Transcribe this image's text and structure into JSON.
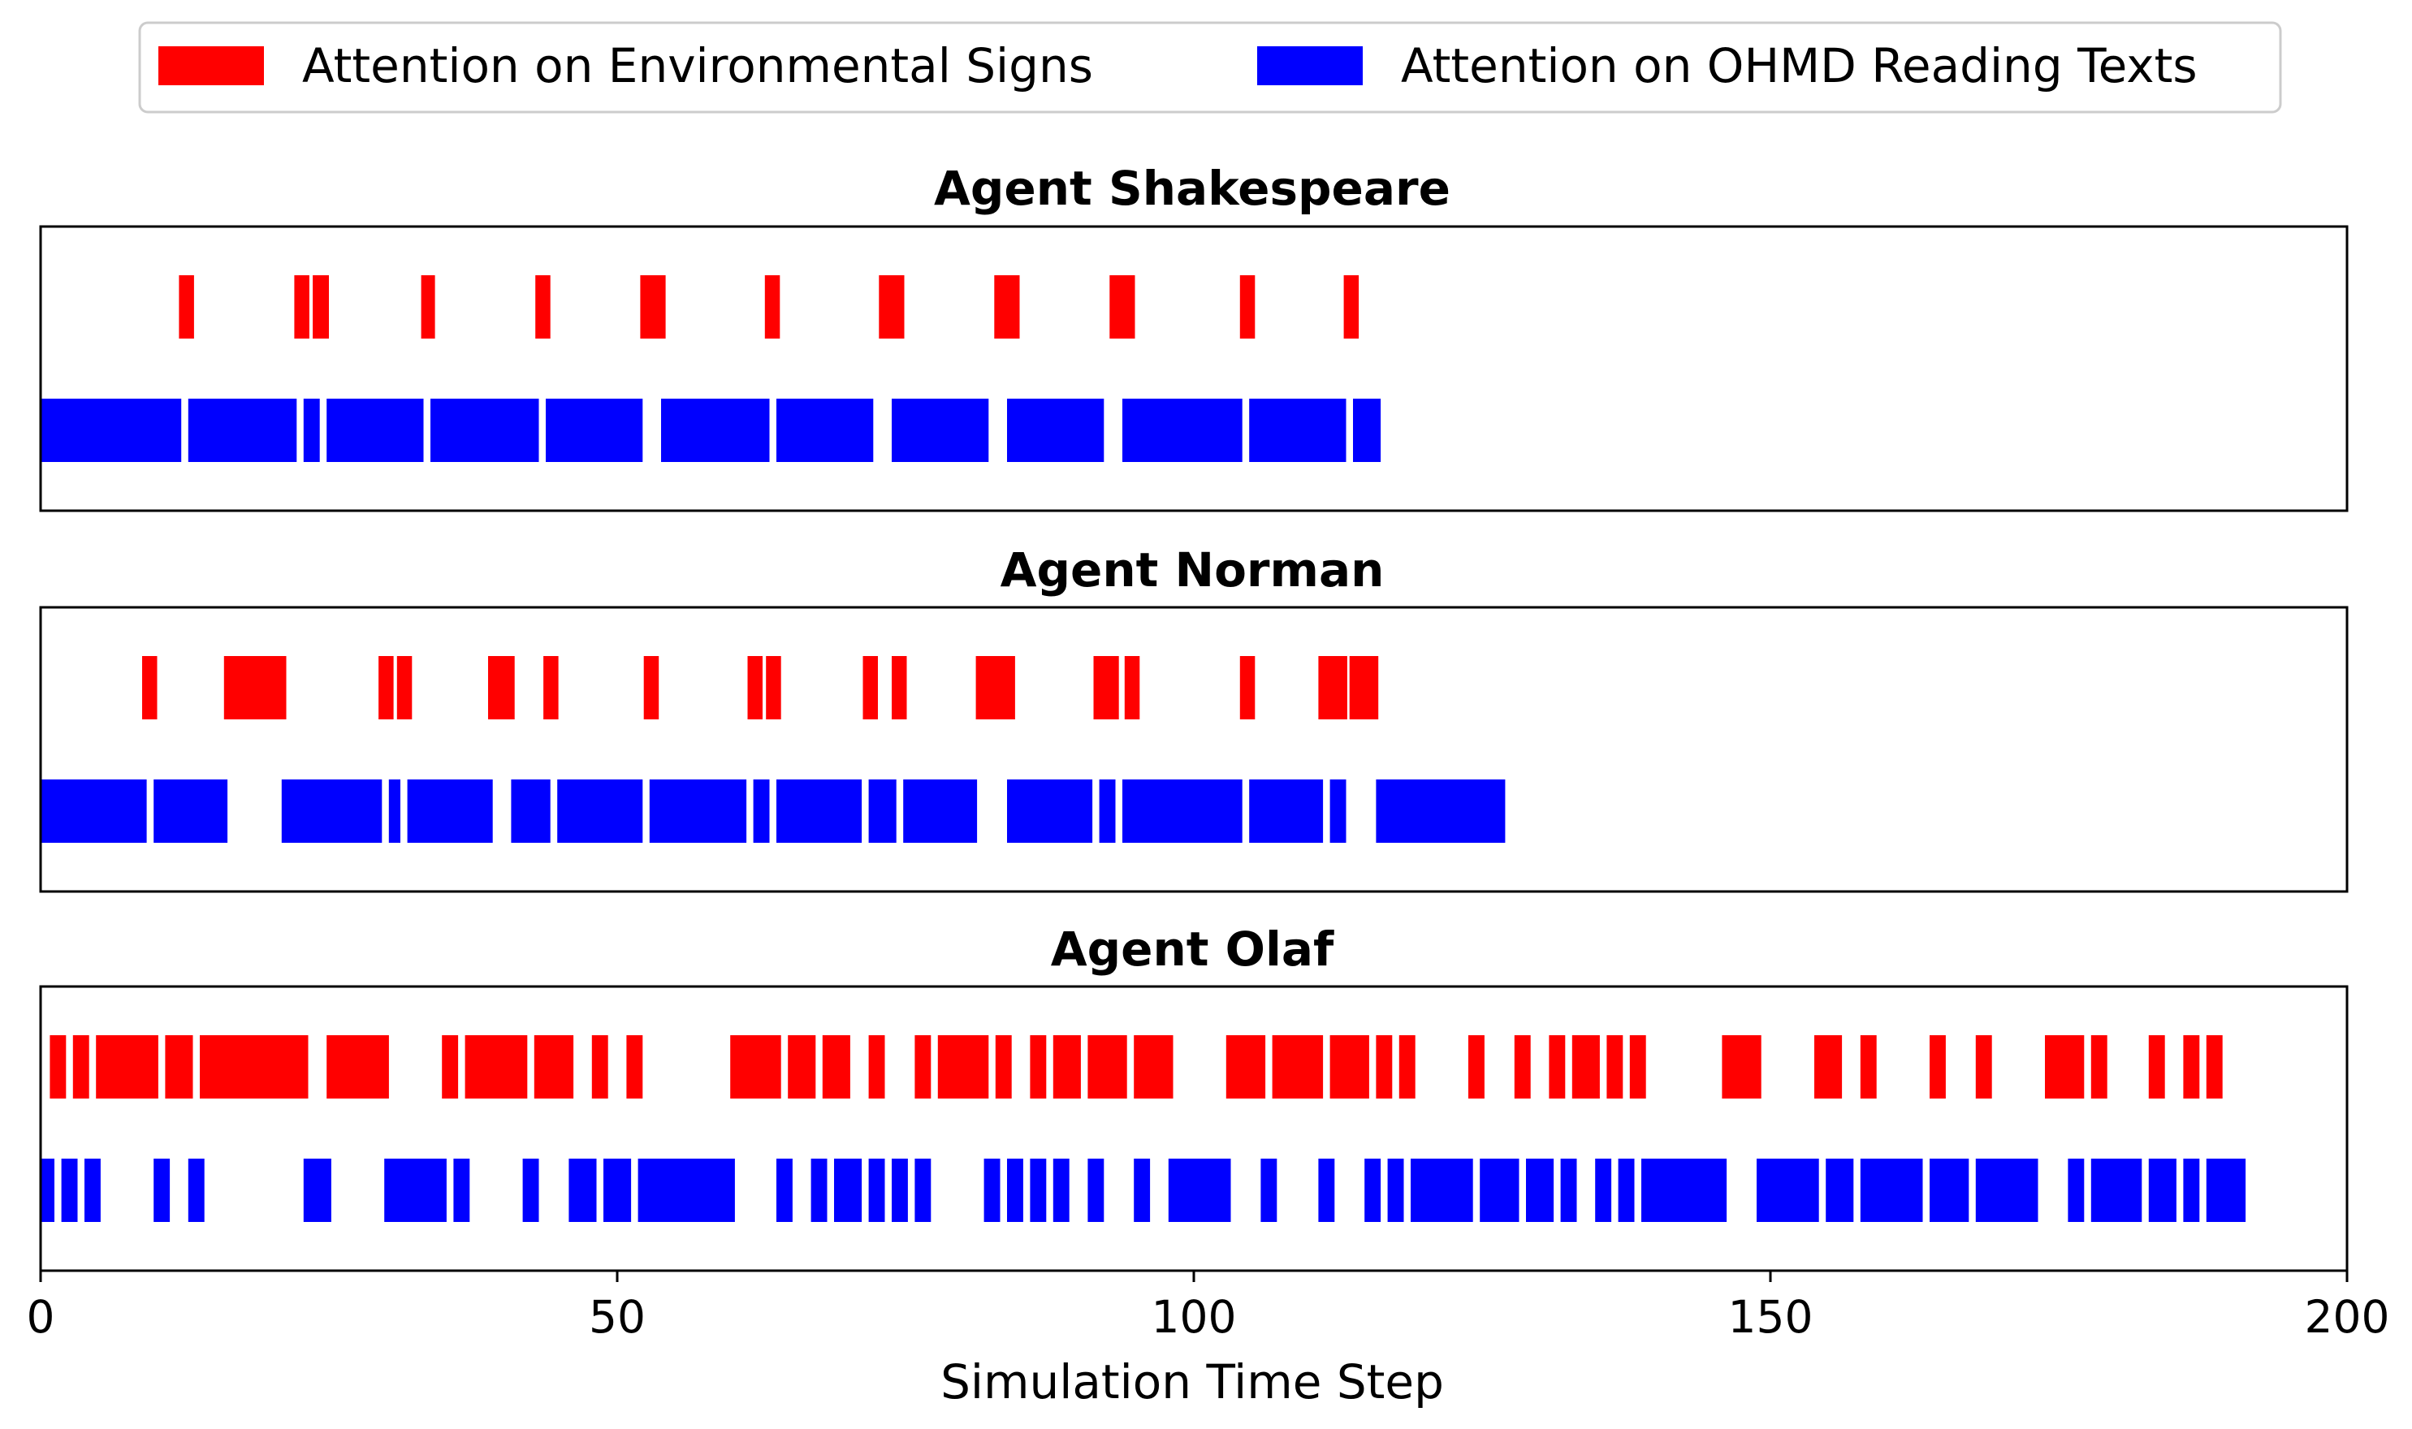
{
  "chart_data": {
    "type": "broken_barh",
    "xlabel": "Simulation Time Step",
    "xlim": [
      0,
      200
    ],
    "xticks": [
      0,
      50,
      100,
      150,
      200
    ],
    "xtick_labels": [
      "0",
      "50",
      "100",
      "150",
      "200"
    ],
    "grid": false,
    "legend_position": "top-center",
    "legend": [
      {
        "label": "Attention on Environmental Signs",
        "color": "#ff0000"
      },
      {
        "label": "Attention on OHMD Reading Texts",
        "color": "#0000ff"
      }
    ],
    "panels": [
      {
        "title": "Agent Shakespeare",
        "series": [
          {
            "color": "#ff0000",
            "segments": [
              [
                12,
                13.3
              ],
              [
                22,
                23.3
              ],
              [
                23.6,
                25
              ],
              [
                33,
                34.2
              ],
              [
                42.9,
                44.2
              ],
              [
                52,
                54.2
              ],
              [
                62.8,
                64.1
              ],
              [
                72.7,
                74.9
              ],
              [
                82.7,
                84.9
              ],
              [
                92.7,
                94.9
              ],
              [
                104,
                105.3
              ],
              [
                113,
                114.3
              ]
            ]
          },
          {
            "color": "#0000ff",
            "segments": [
              [
                0,
                12.2
              ],
              [
                12.8,
                22.2
              ],
              [
                22.8,
                24.2
              ],
              [
                24.8,
                33.2
              ],
              [
                33.8,
                43.2
              ],
              [
                43.8,
                52.2
              ],
              [
                53.8,
                63.2
              ],
              [
                63.8,
                72.2
              ],
              [
                73.8,
                82.2
              ],
              [
                83.8,
                92.2
              ],
              [
                93.8,
                104.2
              ],
              [
                104.8,
                113.2
              ],
              [
                113.8,
                116.2
              ]
            ]
          }
        ]
      },
      {
        "title": "Agent Norman",
        "series": [
          {
            "color": "#ff0000",
            "segments": [
              [
                8.8,
                10.1
              ],
              [
                15.9,
                21.3
              ],
              [
                29.3,
                30.6
              ],
              [
                30.9,
                32.2
              ],
              [
                38.8,
                41.1
              ],
              [
                43.6,
                44.9
              ],
              [
                52.3,
                53.6
              ],
              [
                61.3,
                62.6
              ],
              [
                62.9,
                64.2
              ],
              [
                71.3,
                72.6
              ],
              [
                73.8,
                75.1
              ],
              [
                81.1,
                84.5
              ],
              [
                91.3,
                93.5
              ],
              [
                94,
                95.3
              ],
              [
                104,
                105.3
              ],
              [
                110.8,
                113.3
              ],
              [
                113.5,
                116
              ]
            ]
          },
          {
            "color": "#0000ff",
            "segments": [
              [
                0,
                9.2
              ],
              [
                9.8,
                16.2
              ],
              [
                20.9,
                29.6
              ],
              [
                30.2,
                31.2
              ],
              [
                31.8,
                39.2
              ],
              [
                40.8,
                44.2
              ],
              [
                44.8,
                52.2
              ],
              [
                52.8,
                61.2
              ],
              [
                61.8,
                63.2
              ],
              [
                63.8,
                71.2
              ],
              [
                71.8,
                74.2
              ],
              [
                74.8,
                81.2
              ],
              [
                83.8,
                91.2
              ],
              [
                91.8,
                93.2
              ],
              [
                93.8,
                104.2
              ],
              [
                104.8,
                111.2
              ],
              [
                111.8,
                113.2
              ],
              [
                115.8,
                127
              ]
            ]
          }
        ]
      },
      {
        "title": "Agent Olaf",
        "series": [
          {
            "color": "#ff0000",
            "segments": [
              [
                0.8,
                2.2
              ],
              [
                2.8,
                4.2
              ],
              [
                4.8,
                10.2
              ],
              [
                10.8,
                13.2
              ],
              [
                13.8,
                23.2
              ],
              [
                24.8,
                30.2
              ],
              [
                34.8,
                36.2
              ],
              [
                36.8,
                42.2
              ],
              [
                42.8,
                46.2
              ],
              [
                47.8,
                49.2
              ],
              [
                50.8,
                52.2
              ],
              [
                59.8,
                64.2
              ],
              [
                64.8,
                67.2
              ],
              [
                67.8,
                70.2
              ],
              [
                71.8,
                73.2
              ],
              [
                75.8,
                77.2
              ],
              [
                77.8,
                82.2
              ],
              [
                82.8,
                84.2
              ],
              [
                85.8,
                87.2
              ],
              [
                87.8,
                90.2
              ],
              [
                90.8,
                94.2
              ],
              [
                94.8,
                98.2
              ],
              [
                102.8,
                106.2
              ],
              [
                106.8,
                111.2
              ],
              [
                111.8,
                115.2
              ],
              [
                115.8,
                117.2
              ],
              [
                117.8,
                119.2
              ],
              [
                123.8,
                125.2
              ],
              [
                127.8,
                129.2
              ],
              [
                130.8,
                132.2
              ],
              [
                132.8,
                135.2
              ],
              [
                135.8,
                137.2
              ],
              [
                137.8,
                139.2
              ],
              [
                145.8,
                149.2
              ],
              [
                153.8,
                156.2
              ],
              [
                157.8,
                159.2
              ],
              [
                163.8,
                165.2
              ],
              [
                167.8,
                169.2
              ],
              [
                173.8,
                177.2
              ],
              [
                177.8,
                179.2
              ],
              [
                182.8,
                184.2
              ],
              [
                185.8,
                187.2
              ],
              [
                187.8,
                189.2
              ]
            ]
          },
          {
            "color": "#0000ff",
            "segments": [
              [
                0,
                1.2
              ],
              [
                1.8,
                3.2
              ],
              [
                3.8,
                5.2
              ],
              [
                9.8,
                11.2
              ],
              [
                12.8,
                14.2
              ],
              [
                22.8,
                25.2
              ],
              [
                29.8,
                35.2
              ],
              [
                35.8,
                37.2
              ],
              [
                41.8,
                43.2
              ],
              [
                45.8,
                48.2
              ],
              [
                48.8,
                51.2
              ],
              [
                51.8,
                60.2
              ],
              [
                63.8,
                65.2
              ],
              [
                66.8,
                68.2
              ],
              [
                68.8,
                71.2
              ],
              [
                71.8,
                73.2
              ],
              [
                73.8,
                75.2
              ],
              [
                75.8,
                77.2
              ],
              [
                81.8,
                83.2
              ],
              [
                83.8,
                85.2
              ],
              [
                85.8,
                87.2
              ],
              [
                87.8,
                89.2
              ],
              [
                90.8,
                92.2
              ],
              [
                94.8,
                96.2
              ],
              [
                97.8,
                103.2
              ],
              [
                105.8,
                107.2
              ],
              [
                110.8,
                112.2
              ],
              [
                114.8,
                116.2
              ],
              [
                116.8,
                118.2
              ],
              [
                118.8,
                124.2
              ],
              [
                124.8,
                128.2
              ],
              [
                128.8,
                131.2
              ],
              [
                131.8,
                133.2
              ],
              [
                134.8,
                136.2
              ],
              [
                136.8,
                138.2
              ],
              [
                138.8,
                146.2
              ],
              [
                148.8,
                154.2
              ],
              [
                154.8,
                157.2
              ],
              [
                157.8,
                163.2
              ],
              [
                163.8,
                167.2
              ],
              [
                167.8,
                173.2
              ],
              [
                175.8,
                177.2
              ],
              [
                177.8,
                182.2
              ],
              [
                182.8,
                185.2
              ],
              [
                185.8,
                187.2
              ],
              [
                187.8,
                191.2
              ]
            ]
          }
        ]
      }
    ]
  }
}
